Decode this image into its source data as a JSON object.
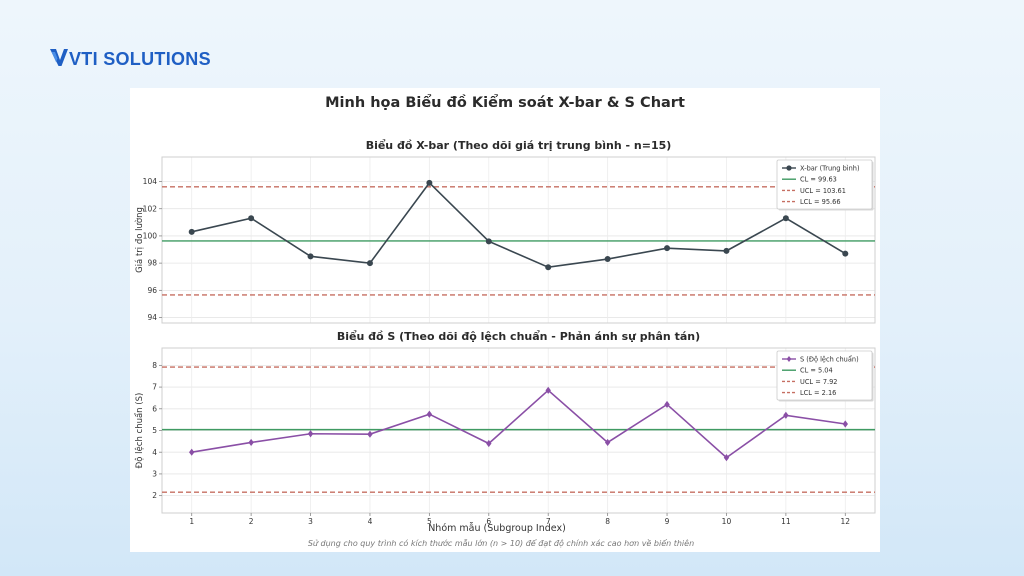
{
  "logo": {
    "text": "VTI SOLUTIONS",
    "color": "#1f5fc4"
  },
  "chart_data": {
    "title": "Minh họa Biểu đồ Kiểm soát X-bar & S Chart",
    "footnote": "Sử dụng cho quy trình có kích thước mẫu lớn (n > 10) để đạt độ chính xác cao hơn về biến thiên",
    "xlabel": "Nhóm mẫu (Subgroup Index)",
    "x": [
      1,
      2,
      3,
      4,
      5,
      6,
      7,
      8,
      9,
      10,
      11,
      12
    ],
    "charts": [
      {
        "id": "xbar",
        "type": "line",
        "title": "Biểu đồ X-bar (Theo dõi giá trị trung bình - n=15)",
        "ylabel": "Giá trị đo lường",
        "ylim": [
          93.6,
          105.8
        ],
        "yticks": [
          94,
          96,
          98,
          100,
          102,
          104
        ],
        "grid": true,
        "legend_position": "top-right",
        "series": [
          {
            "name": "X-bar (Trung bình)",
            "color": "#3a4750",
            "marker": "circle",
            "values": [
              100.3,
              101.3,
              98.5,
              98.0,
              103.9,
              99.6,
              97.7,
              98.3,
              99.1,
              98.9,
              101.3,
              98.7
            ]
          }
        ],
        "limits": [
          {
            "name": "CL = 99.63",
            "value": 99.63,
            "color": "#3f9a62",
            "dashed": false
          },
          {
            "name": "UCL = 103.61",
            "value": 103.61,
            "color": "#c66f62",
            "dashed": true
          },
          {
            "name": "LCL = 95.66",
            "value": 95.66,
            "color": "#c66f62",
            "dashed": true
          }
        ]
      },
      {
        "id": "s",
        "type": "line",
        "title": "Biểu đồ S (Theo dõi độ lệch chuẩn - Phản ánh sự phân tán)",
        "ylabel": "Độ lệch chuẩn (S)",
        "ylim": [
          1.2,
          8.8
        ],
        "yticks": [
          2,
          3,
          4,
          5,
          6,
          7,
          8
        ],
        "grid": true,
        "legend_position": "top-right",
        "series": [
          {
            "name": "S (Độ lệch chuẩn)",
            "color": "#8a4fa6",
            "marker": "diamond",
            "values": [
              4.0,
              4.45,
              4.85,
              4.83,
              5.75,
              4.4,
              6.85,
              4.45,
              6.2,
              3.75,
              5.7,
              5.3
            ]
          }
        ],
        "limits": [
          {
            "name": "CL = 5.04",
            "value": 5.04,
            "color": "#3f9a62",
            "dashed": false
          },
          {
            "name": "UCL = 7.92",
            "value": 7.92,
            "color": "#c66f62",
            "dashed": true
          },
          {
            "name": "LCL = 2.16",
            "value": 2.16,
            "color": "#c66f62",
            "dashed": true
          }
        ]
      }
    ]
  }
}
